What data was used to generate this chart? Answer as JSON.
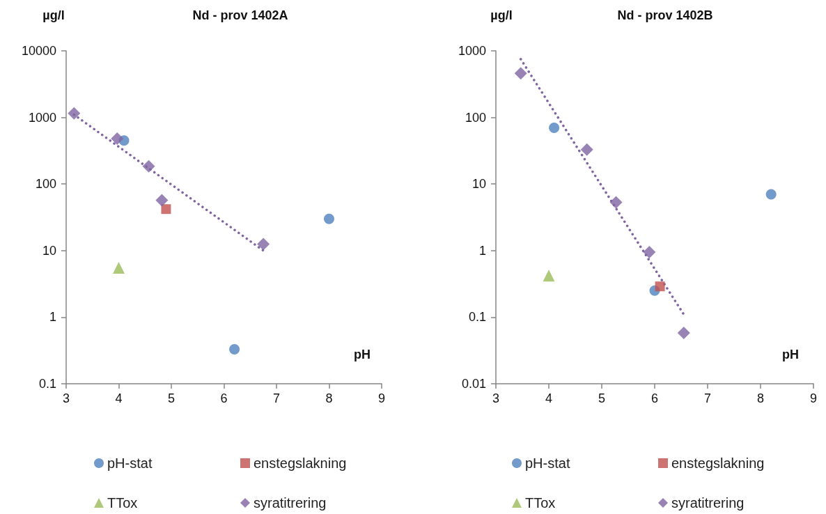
{
  "chart_data": [
    {
      "type": "scatter",
      "title": "Nd - prov 1402A",
      "xlabel": "pH",
      "ylabel": "µg/l",
      "log": true,
      "grid": false,
      "legend": "bottom",
      "xlim": [
        3,
        9
      ],
      "xticks": [
        3,
        4,
        5,
        6,
        7,
        8,
        9
      ],
      "ylim": [
        0.1,
        10000
      ],
      "yticks": [
        0.1,
        1,
        10,
        100,
        1000,
        10000
      ],
      "series": [
        {
          "name": "pH-stat",
          "color": "#4f81bd",
          "marker": "circle",
          "x": [
            4.1,
            6.2,
            8.0
          ],
          "values": [
            450,
            0.33,
            30
          ]
        },
        {
          "name": "enstegslakning",
          "color": "#c0504d",
          "marker": "square",
          "x": [
            4.9
          ],
          "values": [
            42
          ]
        },
        {
          "name": "TTox",
          "color": "#9bbb59",
          "marker": "triangle",
          "x": [
            4.0
          ],
          "values": [
            5.5
          ]
        },
        {
          "name": "syratitrering",
          "color": "#8064a2",
          "marker": "diamond",
          "x": [
            3.15,
            3.97,
            4.57,
            4.82,
            6.75
          ],
          "values": [
            1150,
            480,
            185,
            57,
            12.5
          ]
        },
        {
          "type": "line",
          "color": "#8064a2",
          "marker": "none",
          "line_style": "dotted",
          "x": [
            3.15,
            6.75
          ],
          "values": [
            1100,
            10
          ]
        }
      ]
    },
    {
      "type": "scatter",
      "title": "Nd - prov 1402B",
      "xlabel": "pH",
      "ylabel": "µg/l",
      "log": true,
      "grid": false,
      "legend": "bottom",
      "xlim": [
        3,
        9
      ],
      "xticks": [
        3,
        4,
        5,
        6,
        7,
        8,
        9
      ],
      "ylim": [
        0.01,
        1000
      ],
      "yticks": [
        0.01,
        0.1,
        1,
        10,
        100,
        1000
      ],
      "series": [
        {
          "name": "pH-stat",
          "color": "#4f81bd",
          "marker": "circle",
          "x": [
            4.1,
            6.0,
            8.2
          ],
          "values": [
            70,
            0.25,
            7
          ]
        },
        {
          "name": "enstegslakning",
          "color": "#c0504d",
          "marker": "square",
          "x": [
            6.1
          ],
          "values": [
            0.29
          ]
        },
        {
          "name": "TTox",
          "color": "#9bbb59",
          "marker": "triangle",
          "x": [
            4.0
          ],
          "values": [
            0.42
          ]
        },
        {
          "name": "syratitrering",
          "color": "#8064a2",
          "marker": "diamond",
          "x": [
            3.47,
            4.72,
            5.27,
            5.9,
            6.55
          ],
          "values": [
            460,
            33,
            5.3,
            0.95,
            0.058
          ]
        },
        {
          "type": "line",
          "color": "#8064a2",
          "marker": "none",
          "line_style": "dotted",
          "x": [
            3.47,
            6.55
          ],
          "values": [
            750,
            0.11
          ]
        }
      ]
    }
  ]
}
